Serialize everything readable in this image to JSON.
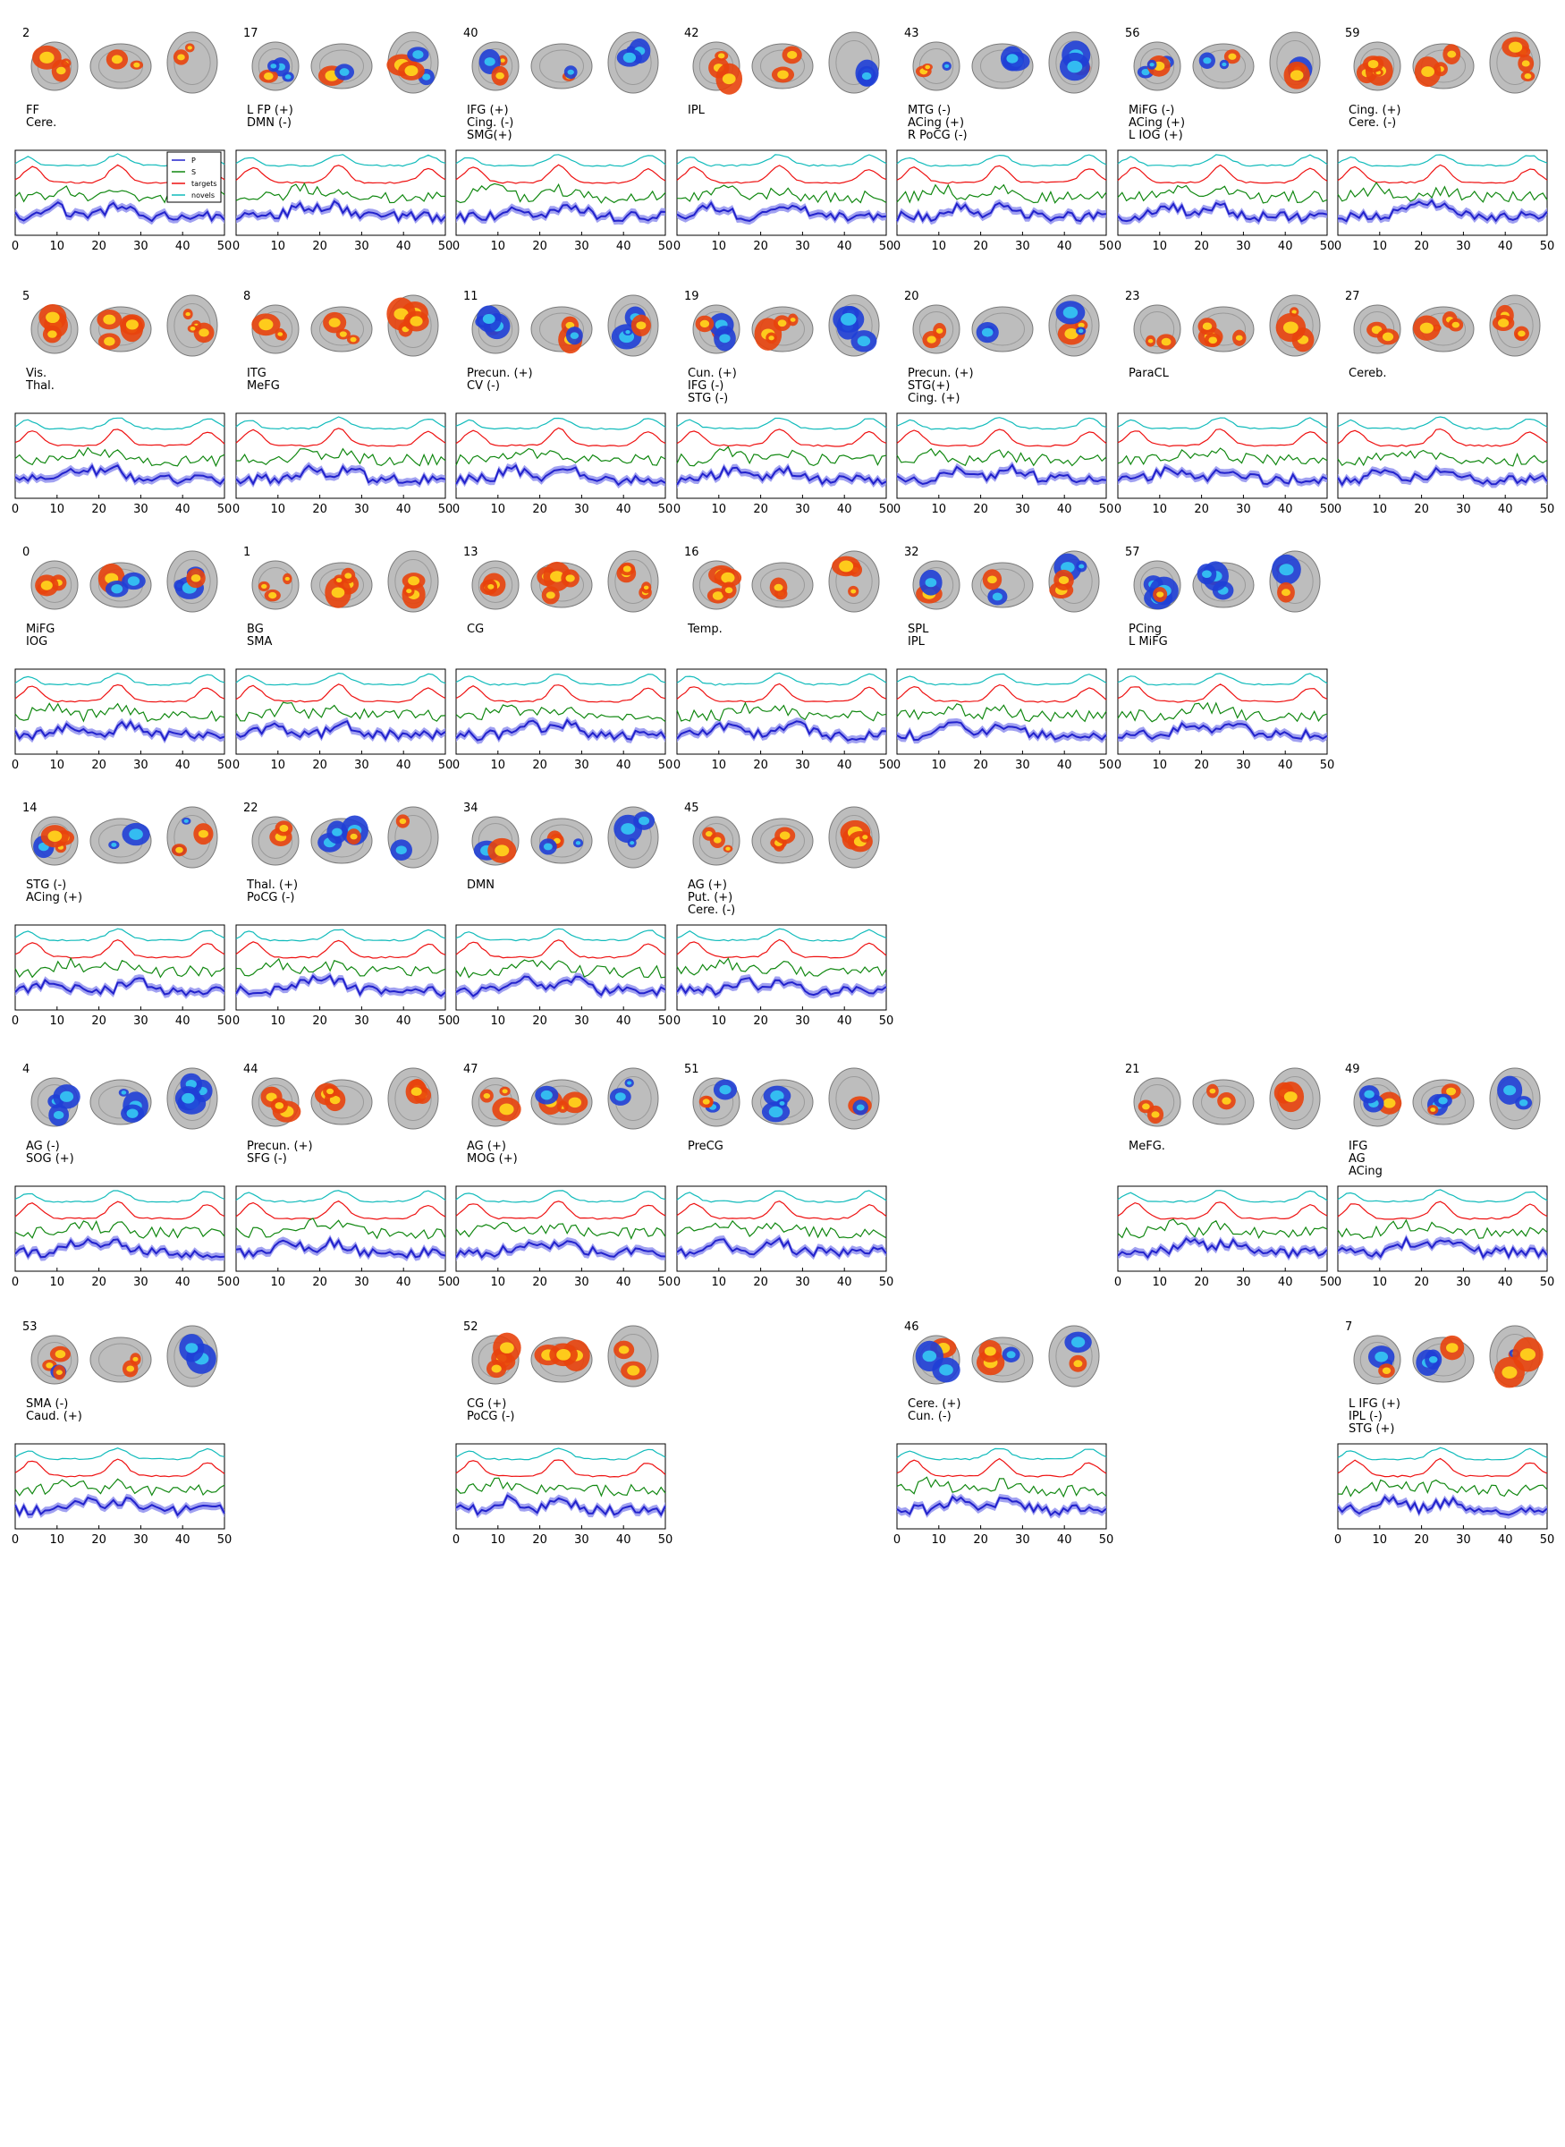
{
  "colors": {
    "P": "#2222cc",
    "P_band": "#8a8aee",
    "S": "#118811",
    "targets": "#ee1111",
    "novels": "#11bbbb",
    "frame": "#000000"
  },
  "legend": [
    "P",
    "S",
    "targets",
    "novels"
  ],
  "chart_data": {
    "type": "line",
    "description_axes": {
      "xlim": [
        0,
        50
      ],
      "xticks": [
        0,
        10,
        20,
        30,
        40,
        50
      ]
    },
    "series_names": [
      "P",
      "S",
      "targets",
      "novels"
    ],
    "rows": [
      [
        {
          "id": "2",
          "labels": [
            "FF",
            "Cere."
          ],
          "col": 0,
          "blob": "warm"
        },
        {
          "id": "17",
          "labels": [
            "L FP (+)",
            "DMN (-)"
          ],
          "col": 1,
          "blob": "mixed"
        },
        {
          "id": "40",
          "labels": [
            "IFG (+)",
            "Cing. (-)",
            "SMG(+)"
          ],
          "col": 2,
          "blob": "mixed"
        },
        {
          "id": "42",
          "labels": [
            "IPL"
          ],
          "col": 3,
          "blob": "mixed"
        },
        {
          "id": "43",
          "labels": [
            "MTG (-)",
            "ACing (+)",
            "R PoCG (-)"
          ],
          "col": 4,
          "blob": "mixed"
        },
        {
          "id": "56",
          "labels": [
            "MiFG (-)",
            "ACing (+)",
            "L IOG (+)"
          ],
          "col": 5,
          "blob": "mixed"
        },
        {
          "id": "59",
          "labels": [
            "Cing. (+)",
            "Cere. (-)"
          ],
          "col": 6,
          "blob": "warm"
        }
      ],
      [
        {
          "id": "5",
          "labels": [
            "Vis.",
            "Thal."
          ],
          "col": 0,
          "blob": "warm"
        },
        {
          "id": "8",
          "labels": [
            "ITG",
            "MeFG"
          ],
          "col": 1,
          "blob": "warm"
        },
        {
          "id": "11",
          "labels": [
            "Precun. (+)",
            "CV (-)"
          ],
          "col": 2,
          "blob": "mixed"
        },
        {
          "id": "19",
          "labels": [
            "Cun. (+)",
            "IFG (-)",
            "STG (-)"
          ],
          "col": 3,
          "blob": "mixed"
        },
        {
          "id": "20",
          "labels": [
            "Precun. (+)",
            "STG(+)",
            "Cing. (+)"
          ],
          "col": 4,
          "blob": "mixed"
        },
        {
          "id": "23",
          "labels": [
            "ParaCL"
          ],
          "col": 5,
          "blob": "warm"
        },
        {
          "id": "27",
          "labels": [
            "Cereb."
          ],
          "col": 6,
          "blob": "warm"
        }
      ],
      [
        {
          "id": "0",
          "labels": [
            "MiFG",
            "IOG"
          ],
          "col": 0,
          "blob": "mixed"
        },
        {
          "id": "1",
          "labels": [
            "BG",
            "SMA"
          ],
          "col": 1,
          "blob": "warm"
        },
        {
          "id": "13",
          "labels": [
            "CG"
          ],
          "col": 2,
          "blob": "warm"
        },
        {
          "id": "16",
          "labels": [
            "Temp."
          ],
          "col": 3,
          "blob": "warm"
        },
        {
          "id": "32",
          "labels": [
            "SPL",
            "IPL"
          ],
          "col": 4,
          "blob": "mixed"
        },
        {
          "id": "57",
          "labels": [
            "PCing",
            "L MiFG"
          ],
          "col": 5,
          "blob": "mixed"
        }
      ],
      [
        {
          "id": "14",
          "labels": [
            "STG (-)",
            "ACing (+)"
          ],
          "col": 0,
          "blob": "mixed"
        },
        {
          "id": "22",
          "labels": [
            "Thal. (+)",
            "PoCG (-)"
          ],
          "col": 1,
          "blob": "mixed"
        },
        {
          "id": "34",
          "labels": [
            "DMN"
          ],
          "col": 2,
          "blob": "mixed"
        },
        {
          "id": "45",
          "labels": [
            "AG (+)",
            "Put. (+)",
            "Cere. (-)"
          ],
          "col": 3,
          "blob": "warm"
        }
      ],
      [
        {
          "id": "4",
          "labels": [
            "AG (-)",
            "SOG (+)"
          ],
          "col": 0,
          "blob": "cool"
        },
        {
          "id": "44",
          "labels": [
            "Precun. (+)",
            "SFG (-)"
          ],
          "col": 1,
          "blob": "warm"
        },
        {
          "id": "47",
          "labels": [
            "AG (+)",
            "MOG (+)"
          ],
          "col": 2,
          "blob": "mixed"
        },
        {
          "id": "51",
          "labels": [
            "PreCG"
          ],
          "col": 3,
          "blob": "mixed"
        },
        {
          "id": "21",
          "labels": [
            "MeFG."
          ],
          "col": 5,
          "blob": "warm"
        },
        {
          "id": "49",
          "labels": [
            "IFG",
            "AG",
            "ACing"
          ],
          "col": 6,
          "blob": "mixed"
        }
      ],
      [
        {
          "id": "53",
          "labels": [
            "SMA (-)",
            "Caud. (+)"
          ],
          "col": 0,
          "blob": "mixed"
        },
        {
          "id": "52",
          "labels": [
            "CG (+)",
            "PoCG (-)"
          ],
          "col": 2,
          "blob": "warm"
        },
        {
          "id": "46",
          "labels": [
            "Cere. (+)",
            "Cun. (-)"
          ],
          "col": 4,
          "blob": "mixed"
        },
        {
          "id": "7",
          "labels": [
            "L IFG (+)",
            "IPL (-)",
            "STG (+)"
          ],
          "col": 6,
          "blob": "mixed"
        }
      ]
    ]
  }
}
